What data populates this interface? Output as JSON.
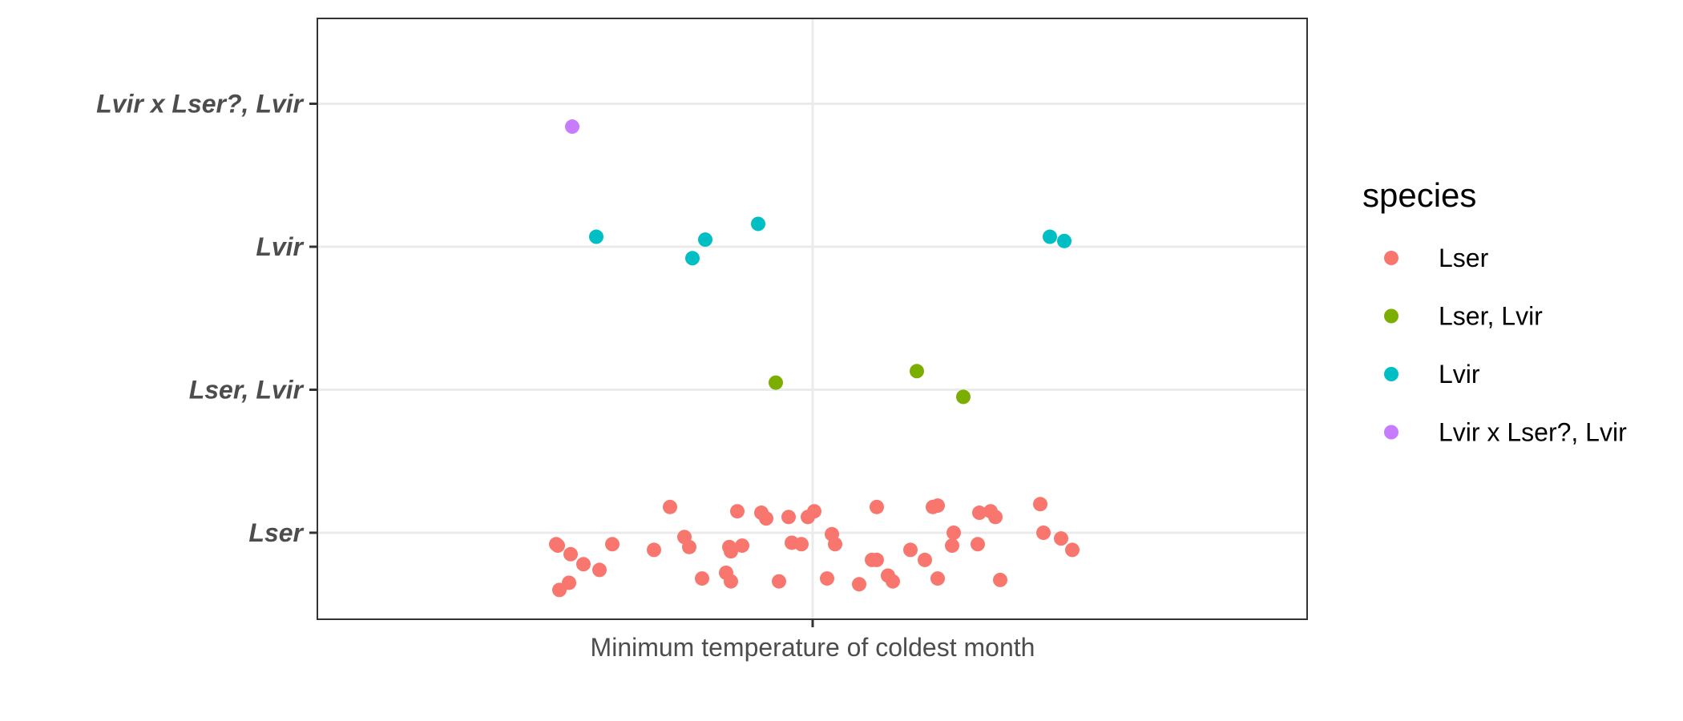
{
  "chart_data": {
    "type": "scatter",
    "x_categories": [
      "Minimum temperature of coldest month"
    ],
    "y_categories": [
      "Lser",
      "Lser, Lvir",
      "Lvir",
      "Lvir x Lser?, Lvir"
    ],
    "grid": true,
    "legend": {
      "title": "species",
      "placement": "right",
      "entries": [
        {
          "name": "Lser",
          "color": "#F8766D"
        },
        {
          "name": "Lser, Lvir",
          "color": "#7CAE00"
        },
        {
          "name": "Lvir",
          "color": "#00BFC4"
        },
        {
          "name": "Lvir x Lser?, Lvir",
          "color": "#C77CFF"
        }
      ]
    },
    "series": [
      {
        "name": "Lser",
        "color": "#F8766D",
        "points": [
          {
            "x": -0.32,
            "y": 0.92
          },
          {
            "x": -0.318,
            "y": 0.91
          },
          {
            "x": -0.302,
            "y": 0.85
          },
          {
            "x": -0.316,
            "y": 0.6
          },
          {
            "x": -0.304,
            "y": 0.65
          },
          {
            "x": -0.286,
            "y": 0.78
          },
          {
            "x": -0.266,
            "y": 0.74
          },
          {
            "x": -0.25,
            "y": 0.92
          },
          {
            "x": -0.198,
            "y": 0.88
          },
          {
            "x": -0.178,
            "y": 1.18
          },
          {
            "x": -0.16,
            "y": 0.97
          },
          {
            "x": -0.154,
            "y": 0.9
          },
          {
            "x": -0.138,
            "y": 0.68
          },
          {
            "x": -0.108,
            "y": 0.72
          },
          {
            "x": -0.104,
            "y": 0.9
          },
          {
            "x": -0.102,
            "y": 0.87
          },
          {
            "x": -0.102,
            "y": 0.66
          },
          {
            "x": -0.094,
            "y": 1.15
          },
          {
            "x": -0.088,
            "y": 0.91
          },
          {
            "x": -0.064,
            "y": 1.14
          },
          {
            "x": -0.058,
            "y": 1.1
          },
          {
            "x": -0.042,
            "y": 0.66
          },
          {
            "x": -0.03,
            "y": 1.11
          },
          {
            "x": -0.026,
            "y": 0.93
          },
          {
            "x": -0.014,
            "y": 0.92
          },
          {
            "x": -0.006,
            "y": 1.11
          },
          {
            "x": 0.002,
            "y": 1.15
          },
          {
            "x": 0.018,
            "y": 0.68
          },
          {
            "x": 0.024,
            "y": 0.99
          },
          {
            "x": 0.028,
            "y": 0.92
          },
          {
            "x": 0.058,
            "y": 0.64
          },
          {
            "x": 0.074,
            "y": 0.81
          },
          {
            "x": 0.08,
            "y": 0.81
          },
          {
            "x": 0.08,
            "y": 1.18
          },
          {
            "x": 0.094,
            "y": 0.7
          },
          {
            "x": 0.1,
            "y": 0.66
          },
          {
            "x": 0.122,
            "y": 0.88
          },
          {
            "x": 0.14,
            "y": 0.81
          },
          {
            "x": 0.15,
            "y": 1.18
          },
          {
            "x": 0.156,
            "y": 1.19
          },
          {
            "x": 0.156,
            "y": 0.68
          },
          {
            "x": 0.174,
            "y": 0.91
          },
          {
            "x": 0.176,
            "y": 1.0
          },
          {
            "x": 0.206,
            "y": 0.92
          },
          {
            "x": 0.208,
            "y": 1.14
          },
          {
            "x": 0.222,
            "y": 1.15
          },
          {
            "x": 0.228,
            "y": 1.11
          },
          {
            "x": 0.234,
            "y": 0.67
          },
          {
            "x": 0.284,
            "y": 1.2
          },
          {
            "x": 0.288,
            "y": 1.0
          },
          {
            "x": 0.31,
            "y": 0.96
          },
          {
            "x": 0.324,
            "y": 0.88
          }
        ]
      },
      {
        "name": "Lser, Lvir",
        "color": "#7CAE00",
        "points": [
          {
            "x": -0.046,
            "y": 2.05
          },
          {
            "x": 0.13,
            "y": 2.13
          },
          {
            "x": 0.188,
            "y": 1.95
          }
        ]
      },
      {
        "name": "Lvir",
        "color": "#00BFC4",
        "points": [
          {
            "x": -0.27,
            "y": 3.07
          },
          {
            "x": -0.15,
            "y": 2.92
          },
          {
            "x": -0.134,
            "y": 3.05
          },
          {
            "x": -0.068,
            "y": 3.16
          },
          {
            "x": 0.296,
            "y": 3.07
          },
          {
            "x": 0.314,
            "y": 3.04
          }
        ]
      },
      {
        "name": "Lvir x Lser?, Lvir",
        "color": "#C77CFF",
        "points": [
          {
            "x": -0.3,
            "y": 3.84
          }
        ]
      }
    ]
  }
}
